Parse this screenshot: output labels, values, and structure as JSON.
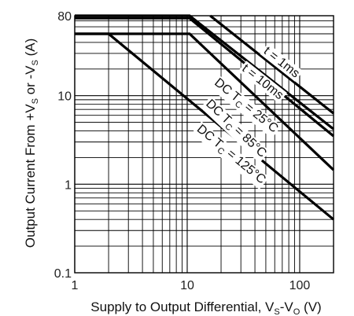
{
  "chart_data": {
    "type": "line",
    "x_scale": "log",
    "y_scale": "log",
    "xlim": [
      1,
      200
    ],
    "ylim": [
      0.1,
      80
    ],
    "grid": true,
    "xlabel": {
      "main": "Supply to Output Differential, V",
      "sub1": "S",
      "mid": "-V",
      "sub2": "O",
      "unit": " (V)"
    },
    "ylabel": {
      "main": "Output Current From +V",
      "sub1": "S",
      "mid": " or -V",
      "sub2": "S",
      "unit": " (A)"
    },
    "x_ticks": [
      {
        "value": 1,
        "label": "1"
      },
      {
        "value": 10,
        "label": "10"
      },
      {
        "value": 100,
        "label": "100"
      }
    ],
    "y_ticks": [
      {
        "value": 0.1,
        "label": "0.1"
      },
      {
        "value": 1,
        "label": "1"
      },
      {
        "value": 10,
        "label": "10"
      },
      {
        "value": 80,
        "label": "80"
      }
    ],
    "series": [
      {
        "prefix": "t = 1ms",
        "sub": "",
        "suffix": "",
        "points": [
          [
            16,
            80
          ],
          [
            200,
            6.3
          ]
        ]
      },
      {
        "prefix": "t = 10ms",
        "sub": "",
        "suffix": "",
        "points": [
          [
            1,
            80
          ],
          [
            10.5,
            80
          ],
          [
            200,
            4.2
          ]
        ]
      },
      {
        "prefix": "DC T",
        "sub": "C",
        "suffix": " = 25°C",
        "points": [
          [
            1,
            75
          ],
          [
            10.5,
            75
          ],
          [
            200,
            3.5
          ]
        ]
      },
      {
        "prefix": "DC T",
        "sub": "C",
        "suffix": " = 85°C",
        "points": [
          [
            1,
            50
          ],
          [
            10.5,
            50
          ],
          [
            200,
            1.45
          ]
        ]
      },
      {
        "prefix": "DC T",
        "sub": "C",
        "suffix": " = 125°C",
        "points": [
          [
            1,
            50
          ],
          [
            2.0,
            50
          ],
          [
            200,
            0.4
          ]
        ]
      }
    ]
  }
}
